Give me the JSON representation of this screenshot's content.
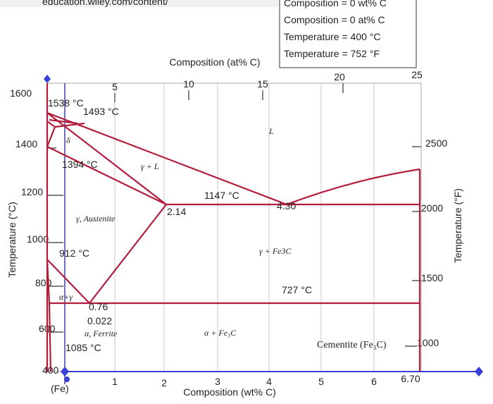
{
  "browser": {
    "url": "education.wiley.com/content/"
  },
  "readout": [
    "Composition = 0 wt% C",
    "Composition = 0 at% C",
    "Temperature = 400 °C",
    "Temperature = 752 °F"
  ],
  "top_axis": {
    "label": "Composition (at% C)",
    "ticks": [
      "5",
      "10",
      "15",
      "20",
      "25"
    ]
  },
  "left_axis": {
    "label": "Temperature (°C)",
    "ticks": [
      "1600",
      "1400",
      "1200",
      "1000",
      "800",
      "600",
      "400"
    ]
  },
  "right_axis": {
    "label": "Temperature (°F)",
    "ticks": [
      "2500",
      "2000",
      "1500",
      "1000"
    ]
  },
  "bottom_axis": {
    "label": "Composition (wt% C)",
    "origin": "(Fe)",
    "ticks": [
      "1",
      "2",
      "3",
      "4",
      "5",
      "6",
      "6.70"
    ]
  },
  "annotations": [
    "1538 °C",
    "1493 °C",
    "δ",
    "1394 °C",
    "γ + L",
    "L",
    "1147 °C",
    "4.30",
    "2.14",
    "γ, Austenite",
    "912 °C",
    "γ + Fe3C",
    "727 °C",
    "α+γ",
    "0.76",
    "0.022",
    "α, Ferrite",
    "1085 °C",
    "α + Fe₃C",
    "Cementite (Fe₃C)"
  ]
}
